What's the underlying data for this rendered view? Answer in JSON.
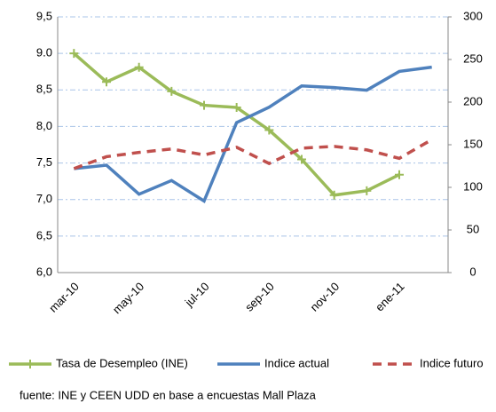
{
  "chart_data": {
    "type": "line",
    "categories": [
      "mar-10",
      null,
      "may-10",
      null,
      "jul-10",
      null,
      "sep-10",
      null,
      "nov-10",
      null,
      "ene-11",
      null
    ],
    "series": [
      {
        "name": "Tasa de Desempleo (INE)",
        "color": "#9bbb59",
        "marker": "plus",
        "values": [
          9.0,
          8.61,
          8.81,
          8.48,
          8.29,
          8.26,
          7.95,
          7.55,
          7.06,
          7.12,
          7.34,
          null
        ]
      },
      {
        "name": "Indice actual",
        "color": "#4f81bd",
        "axis": "y2",
        "values": [
          122,
          126,
          92,
          108,
          84,
          176,
          194,
          219,
          217,
          214,
          236,
          241
        ]
      },
      {
        "name": "Indice futuro",
        "color": "#c0504d",
        "axis": "y2",
        "dashed": true,
        "values": [
          122,
          136,
          141,
          145,
          138,
          147,
          128,
          146,
          148,
          144,
          134,
          156
        ]
      }
    ],
    "ylim": [
      6.0,
      9.5
    ],
    "yticks": [
      {
        "value": 6.0,
        "label": "6,0"
      },
      {
        "value": 6.5,
        "label": "6,5"
      },
      {
        "value": 7.0,
        "label": "7,0"
      },
      {
        "value": 7.5,
        "label": "7,5"
      },
      {
        "value": 8.0,
        "label": "8,0"
      },
      {
        "value": 8.5,
        "label": "8,5"
      },
      {
        "value": 9.0,
        "label": "9.0"
      },
      {
        "value": 9.5,
        "label": "9,5"
      }
    ],
    "y2lim": [
      0,
      300
    ],
    "y2ticks": [
      0,
      50,
      100,
      150,
      200,
      250,
      300
    ],
    "grid": true,
    "legend": "bottom",
    "source": "fuente: INE y CEEN UDD en base a encuestas Mall Plaza"
  }
}
